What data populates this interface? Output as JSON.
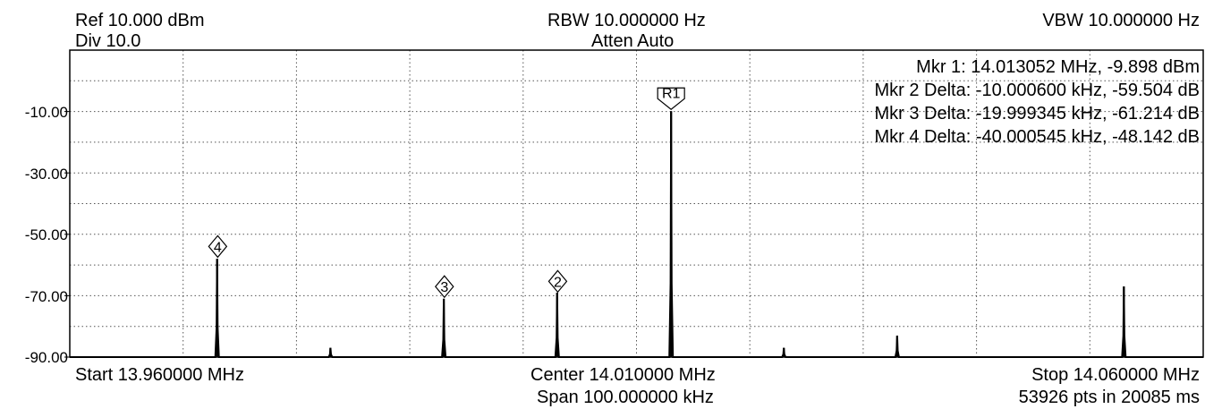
{
  "header": {
    "ref": "Ref 10.000 dBm",
    "div": "Div 10.0",
    "rbw": "RBW 10.000000 Hz",
    "atten": "Atten Auto",
    "vbw": "VBW 10.000000 Hz"
  },
  "footer": {
    "start": "Start 13.960000 MHz",
    "center": "Center 14.010000 MHz",
    "span": "Span 100.000000 kHz",
    "stop": "Stop 14.060000 MHz",
    "sweep": "53926 pts in 20085 ms"
  },
  "marker_readouts": [
    "Mkr 1: 14.013052 MHz, -9.898 dBm",
    "Mkr 2 Delta: -10.000600 kHz, -59.504 dB",
    "Mkr 3 Delta: -19.999345 kHz, -61.214 dB",
    "Mkr 4 Delta: -40.000545 kHz, -48.142 dB"
  ],
  "chart_data": {
    "type": "line",
    "x_unit": "MHz",
    "y_unit": "dBm",
    "xlim": [
      13.96,
      14.06
    ],
    "ylim": [
      -90,
      10
    ],
    "y_ticks": [
      -10,
      -30,
      -50,
      -70,
      -90
    ],
    "y_tick_labels": [
      "-10.00",
      "-30.00",
      "-50.00",
      "-70.00",
      "-90.00"
    ],
    "grid": true,
    "noise_floor": -90,
    "peaks": [
      {
        "x": 13.973,
        "y": -58
      },
      {
        "x": 13.983,
        "y": -87
      },
      {
        "x": 13.993,
        "y": -71
      },
      {
        "x": 14.003,
        "y": -69
      },
      {
        "x": 14.013052,
        "y": -9.898
      },
      {
        "x": 14.023,
        "y": -87
      },
      {
        "x": 14.033,
        "y": -83
      },
      {
        "x": 14.053,
        "y": -67
      }
    ],
    "markers": [
      {
        "label": "R1",
        "x": 14.013052,
        "y": -9.898
      },
      {
        "label": "2",
        "x": 14.003051,
        "y": -69.402
      },
      {
        "label": "3",
        "x": 13.993053,
        "y": -71.112
      },
      {
        "label": "4",
        "x": 13.973051,
        "y": -58.04
      }
    ]
  }
}
